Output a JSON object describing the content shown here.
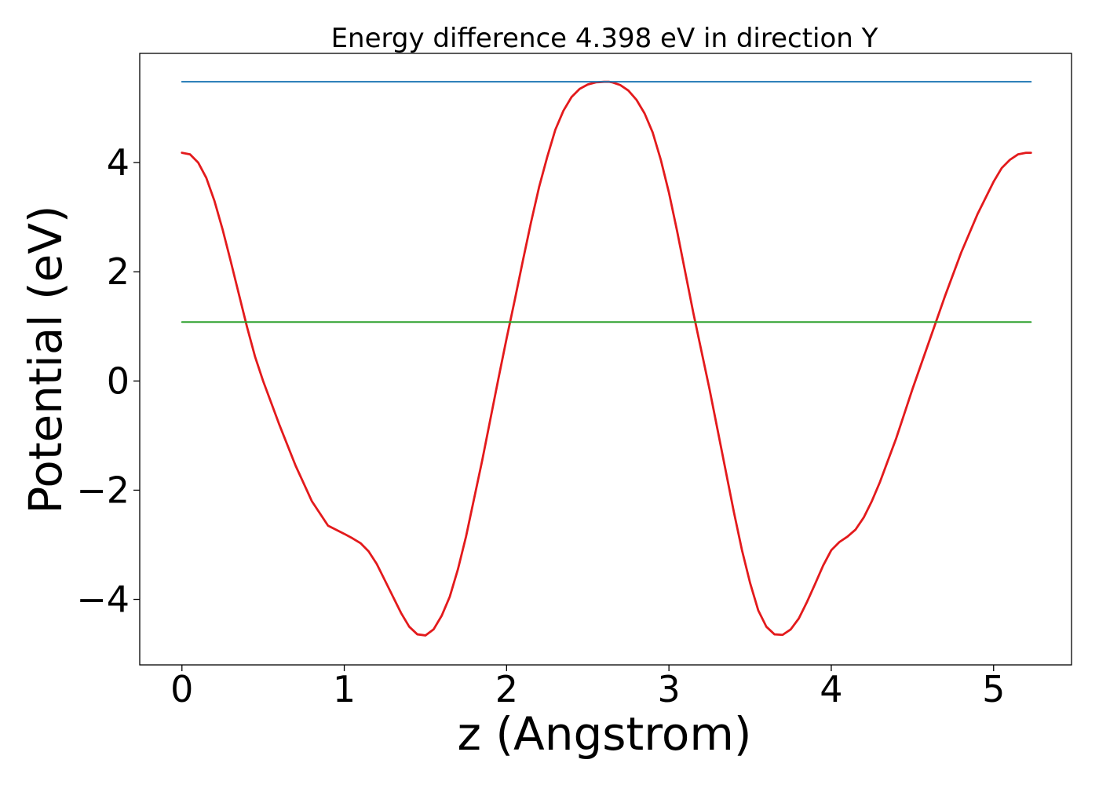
{
  "chart_data": {
    "type": "line",
    "title": "Energy difference 4.398 eV in direction Y",
    "xlabel": "z (Angstrom)",
    "ylabel": "Potential (eV)",
    "xlim": [
      -0.26,
      5.48
    ],
    "ylim": [
      -5.2,
      6.0
    ],
    "grid": false,
    "x_ticks": [
      {
        "value": 0,
        "label": "0"
      },
      {
        "value": 1,
        "label": "1"
      },
      {
        "value": 2,
        "label": "2"
      },
      {
        "value": 3,
        "label": "3"
      },
      {
        "value": 4,
        "label": "4"
      },
      {
        "value": 5,
        "label": "5"
      }
    ],
    "y_ticks": [
      {
        "value": -4,
        "label": "−4"
      },
      {
        "value": -2,
        "label": "−2"
      },
      {
        "value": 0,
        "label": "0"
      },
      {
        "value": 2,
        "label": "2"
      },
      {
        "value": 4,
        "label": "4"
      }
    ],
    "series": [
      {
        "kind": "curve",
        "color": "#e31a1c",
        "x": [
          0.0,
          0.05,
          0.1,
          0.15,
          0.2,
          0.25,
          0.3,
          0.35,
          0.4,
          0.45,
          0.5,
          0.6,
          0.7,
          0.8,
          0.9,
          1.0,
          1.05,
          1.1,
          1.15,
          1.2,
          1.25,
          1.3,
          1.35,
          1.4,
          1.45,
          1.5,
          1.55,
          1.6,
          1.65,
          1.7,
          1.75,
          1.8,
          1.85,
          1.9,
          1.95,
          2.0,
          2.05,
          2.1,
          2.15,
          2.2,
          2.25,
          2.3,
          2.35,
          2.4,
          2.45,
          2.5,
          2.55,
          2.6,
          2.63,
          2.65,
          2.7,
          2.75,
          2.8,
          2.85,
          2.9,
          2.95,
          3.0,
          3.05,
          3.1,
          3.15,
          3.2,
          3.25,
          3.3,
          3.35,
          3.4,
          3.45,
          3.5,
          3.55,
          3.6,
          3.65,
          3.7,
          3.75,
          3.8,
          3.85,
          3.9,
          3.95,
          4.0,
          4.05,
          4.1,
          4.15,
          4.2,
          4.25,
          4.3,
          4.35,
          4.4,
          4.45,
          4.5,
          4.6,
          4.7,
          4.8,
          4.9,
          5.0,
          5.05,
          5.1,
          5.15,
          5.2,
          5.23
        ],
        "y": [
          4.18,
          4.15,
          4.0,
          3.72,
          3.3,
          2.78,
          2.2,
          1.6,
          1.0,
          0.45,
          0.0,
          -0.8,
          -1.55,
          -2.2,
          -2.65,
          -2.8,
          -2.88,
          -2.97,
          -3.12,
          -3.35,
          -3.65,
          -3.95,
          -4.25,
          -4.5,
          -4.64,
          -4.66,
          -4.55,
          -4.3,
          -3.95,
          -3.45,
          -2.85,
          -2.15,
          -1.45,
          -0.7,
          0.05,
          0.78,
          1.48,
          2.2,
          2.9,
          3.55,
          4.1,
          4.6,
          4.95,
          5.2,
          5.35,
          5.43,
          5.47,
          5.48,
          5.48,
          5.47,
          5.42,
          5.32,
          5.15,
          4.9,
          4.55,
          4.05,
          3.45,
          2.75,
          2.0,
          1.25,
          0.55,
          -0.15,
          -0.9,
          -1.65,
          -2.4,
          -3.1,
          -3.7,
          -4.2,
          -4.5,
          -4.64,
          -4.65,
          -4.55,
          -4.35,
          -4.05,
          -3.72,
          -3.38,
          -3.1,
          -2.95,
          -2.85,
          -2.72,
          -2.5,
          -2.2,
          -1.85,
          -1.45,
          -1.05,
          -0.6,
          -0.15,
          0.7,
          1.55,
          2.35,
          3.05,
          3.65,
          3.9,
          4.05,
          4.15,
          4.18,
          4.18
        ]
      },
      {
        "kind": "hline",
        "color": "#1f77b4",
        "x": [
          0.0,
          5.23
        ],
        "y": [
          5.48,
          5.48
        ]
      },
      {
        "kind": "hline",
        "color": "#2ca02c",
        "x": [
          0.0,
          5.23
        ],
        "y": [
          1.08,
          1.08
        ]
      }
    ]
  }
}
